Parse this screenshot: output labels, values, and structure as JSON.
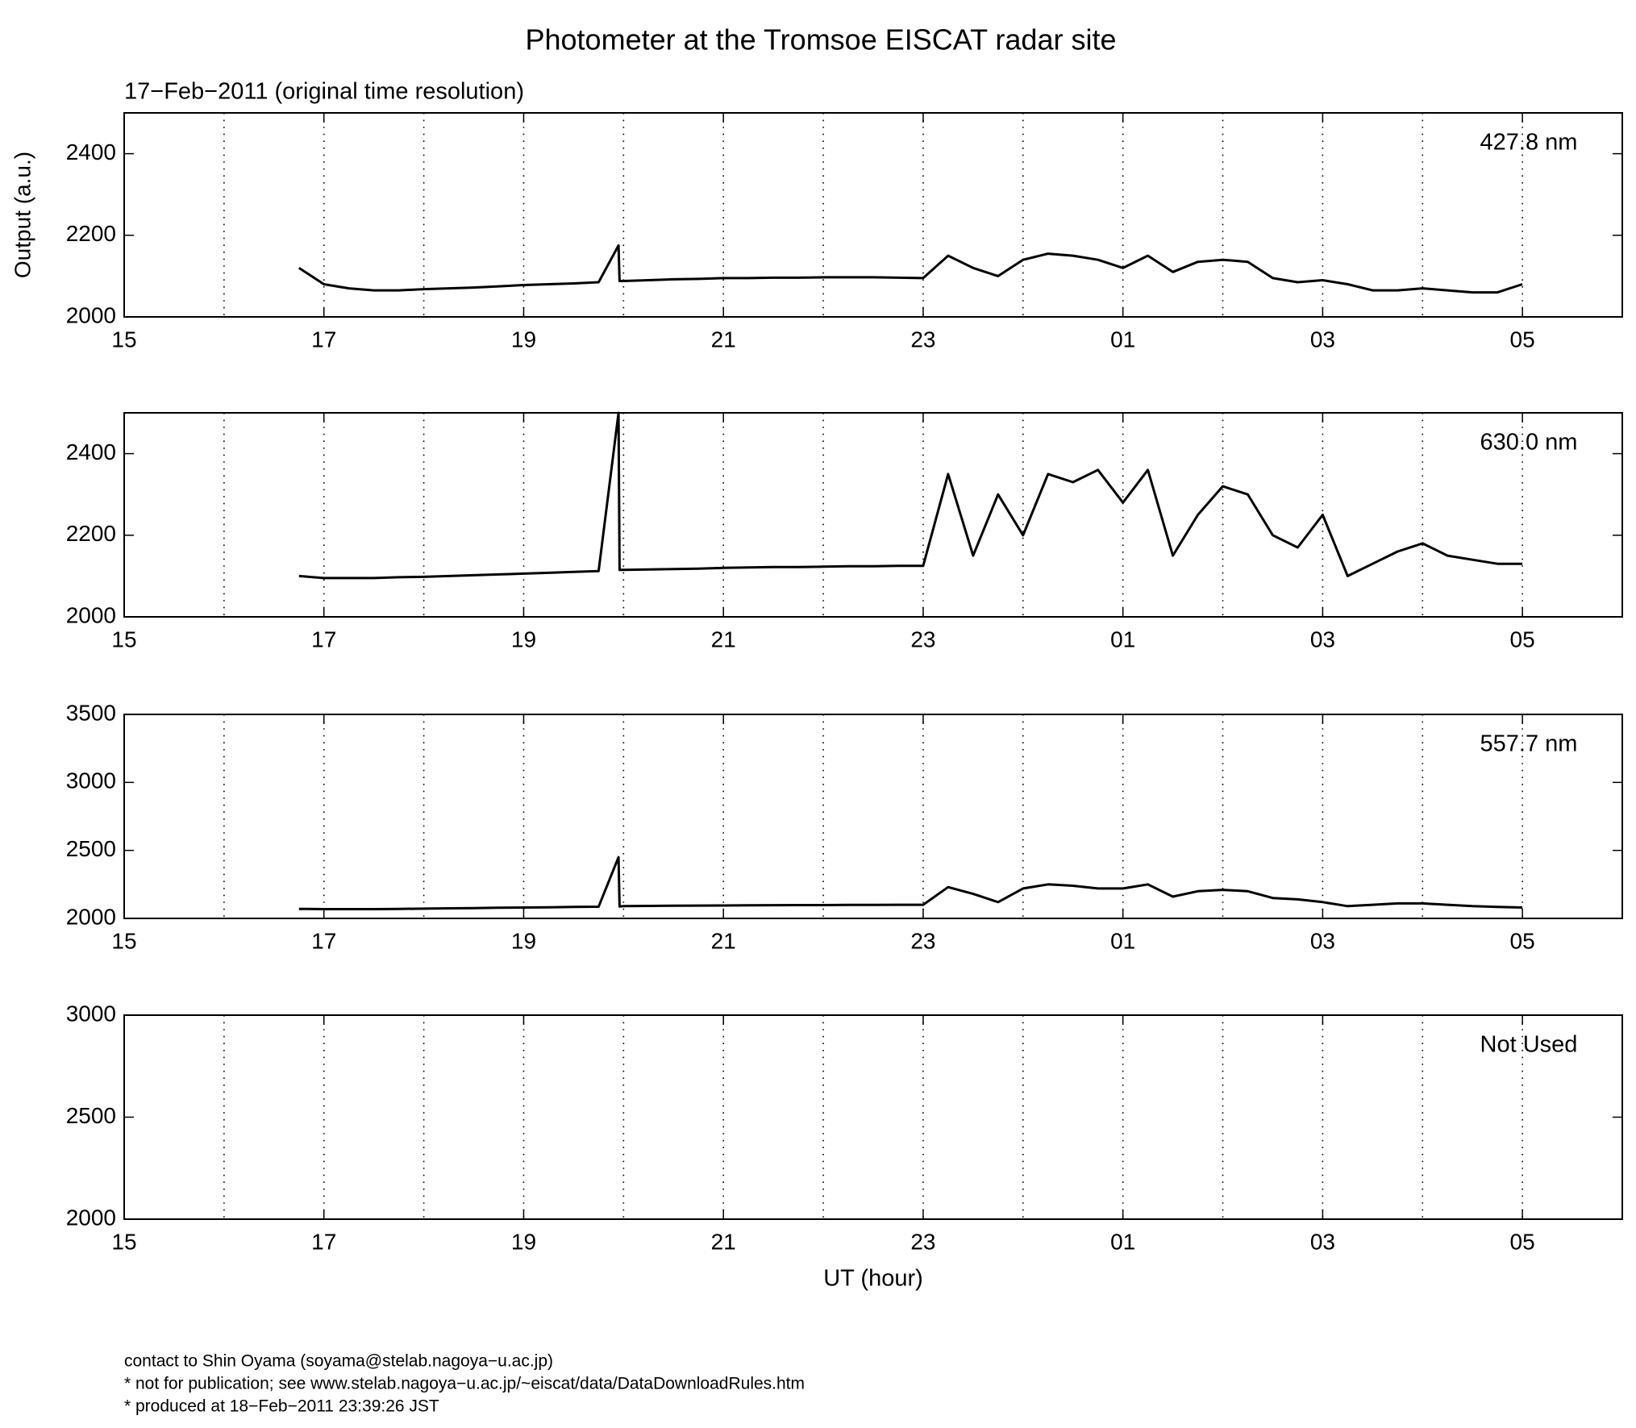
{
  "title": "Photometer at the Tromsoe EISCAT radar site",
  "subtitle": "17−Feb−2011 (original time resolution)",
  "footer": [
    "contact to Shin Oyama (soyama@stelab.nagoya−u.ac.jp)",
    "* not for publication; see www.stelab.nagoya−u.ac.jp/~eiscat/data/DataDownloadRules.htm",
    "* produced at 18−Feb−2011 23:39:26 JST"
  ],
  "chart_data": [
    {
      "type": "line",
      "annotation": "427.8 nm",
      "ylabel": "Output (a.u.)",
      "xlim": [
        15,
        30
      ],
      "xticks": [
        15,
        17,
        19,
        21,
        23,
        {
          "value": 25,
          "label": "01"
        },
        {
          "value": 27,
          "label": "03"
        },
        {
          "value": 29,
          "label": "05"
        }
      ],
      "xgrid": [
        16,
        17,
        18,
        19,
        20,
        21,
        22,
        23,
        24,
        25,
        26,
        27,
        28,
        29
      ],
      "ylim": [
        2000,
        2500
      ],
      "yticks": [
        2000,
        2200,
        2400
      ],
      "series": [
        {
          "color": "#000000",
          "x": [
            16.75,
            17,
            17.25,
            17.5,
            17.75,
            18,
            18.25,
            18.5,
            18.75,
            19,
            19.25,
            19.5,
            19.75,
            19.95,
            19.96,
            20,
            20.25,
            20.5,
            20.75,
            21,
            21.25,
            21.5,
            21.75,
            22,
            22.25,
            22.5,
            22.75,
            23,
            23.25,
            23.5,
            23.75,
            24,
            24.25,
            24.5,
            24.75,
            25,
            25.25,
            25.5,
            25.75,
            26,
            26.25,
            26.5,
            26.75,
            27,
            27.25,
            27.5,
            27.75,
            28,
            28.25,
            28.5,
            28.75,
            29
          ],
          "values": [
            2120,
            2080,
            2070,
            2065,
            2065,
            2068,
            2070,
            2072,
            2075,
            2078,
            2080,
            2082,
            2085,
            2175,
            2088,
            2088,
            2090,
            2092,
            2093,
            2095,
            2095,
            2096,
            2096,
            2097,
            2097,
            2097,
            2096,
            2095,
            2150,
            2120,
            2100,
            2140,
            2155,
            2150,
            2140,
            2120,
            2150,
            2110,
            2135,
            2140,
            2135,
            2095,
            2085,
            2090,
            2080,
            2065,
            2065,
            2070,
            2065,
            2060,
            2060,
            2080
          ]
        }
      ]
    },
    {
      "type": "line",
      "annotation": "630.0 nm",
      "xlim": [
        15,
        30
      ],
      "xticks": [
        15,
        17,
        19,
        21,
        23,
        {
          "value": 25,
          "label": "01"
        },
        {
          "value": 27,
          "label": "03"
        },
        {
          "value": 29,
          "label": "05"
        }
      ],
      "xgrid": [
        16,
        17,
        18,
        19,
        20,
        21,
        22,
        23,
        24,
        25,
        26,
        27,
        28,
        29
      ],
      "ylim": [
        2000,
        2500
      ],
      "yticks": [
        2000,
        2200,
        2400
      ],
      "series": [
        {
          "color": "#000000",
          "x": [
            16.75,
            17,
            17.25,
            17.5,
            17.75,
            18,
            18.25,
            18.5,
            18.75,
            19,
            19.25,
            19.5,
            19.75,
            19.95,
            19.96,
            20,
            20.25,
            20.5,
            20.75,
            21,
            21.25,
            21.5,
            21.75,
            22,
            22.25,
            22.5,
            22.75,
            23,
            23.25,
            23.5,
            23.75,
            24,
            24.25,
            24.5,
            24.75,
            25,
            25.25,
            25.5,
            25.75,
            26,
            26.25,
            26.5,
            26.75,
            27,
            27.25,
            27.5,
            27.75,
            28,
            28.25,
            28.5,
            28.75,
            29
          ],
          "values": [
            2100,
            2095,
            2095,
            2095,
            2097,
            2098,
            2100,
            2102,
            2104,
            2106,
            2108,
            2110,
            2112,
            2500,
            2115,
            2115,
            2116,
            2117,
            2118,
            2120,
            2121,
            2122,
            2122,
            2123,
            2124,
            2124,
            2125,
            2125,
            2350,
            2150,
            2300,
            2200,
            2350,
            2330,
            2360,
            2280,
            2360,
            2150,
            2250,
            2320,
            2300,
            2200,
            2170,
            2250,
            2100,
            2130,
            2160,
            2180,
            2150,
            2140,
            2130,
            2130
          ]
        }
      ]
    },
    {
      "type": "line",
      "annotation": "557.7 nm",
      "xlim": [
        15,
        30
      ],
      "xticks": [
        15,
        17,
        19,
        21,
        23,
        {
          "value": 25,
          "label": "01"
        },
        {
          "value": 27,
          "label": "03"
        },
        {
          "value": 29,
          "label": "05"
        }
      ],
      "xgrid": [
        16,
        17,
        18,
        19,
        20,
        21,
        22,
        23,
        24,
        25,
        26,
        27,
        28,
        29
      ],
      "ylim": [
        2000,
        3500
      ],
      "yticks": [
        2000,
        2500,
        3000,
        3500
      ],
      "series": [
        {
          "color": "#000000",
          "x": [
            16.75,
            17,
            17.25,
            17.5,
            17.75,
            18,
            18.25,
            18.5,
            18.75,
            19,
            19.25,
            19.5,
            19.75,
            19.95,
            19.96,
            20,
            20.25,
            20.5,
            20.75,
            21,
            21.25,
            21.5,
            21.75,
            22,
            22.25,
            22.5,
            22.75,
            23,
            23.25,
            23.5,
            23.75,
            24,
            24.25,
            24.5,
            24.75,
            25,
            25.25,
            25.5,
            25.75,
            26,
            26.25,
            26.5,
            26.75,
            27,
            27.25,
            27.5,
            27.75,
            28,
            28.25,
            28.5,
            28.75,
            29
          ],
          "values": [
            2070,
            2068,
            2068,
            2068,
            2070,
            2072,
            2074,
            2076,
            2078,
            2080,
            2082,
            2084,
            2086,
            2450,
            2088,
            2090,
            2092,
            2093,
            2094,
            2095,
            2096,
            2097,
            2098,
            2098,
            2099,
            2099,
            2100,
            2100,
            2230,
            2180,
            2120,
            2220,
            2250,
            2240,
            2220,
            2220,
            2250,
            2160,
            2200,
            2210,
            2200,
            2150,
            2140,
            2120,
            2090,
            2100,
            2110,
            2110,
            2100,
            2090,
            2085,
            2080
          ]
        }
      ]
    },
    {
      "type": "line",
      "annotation": "Not Used",
      "xlabel": "UT (hour)",
      "xlim": [
        15,
        30
      ],
      "xticks": [
        15,
        17,
        19,
        21,
        23,
        {
          "value": 25,
          "label": "01"
        },
        {
          "value": 27,
          "label": "03"
        },
        {
          "value": 29,
          "label": "05"
        }
      ],
      "xgrid": [
        16,
        17,
        18,
        19,
        20,
        21,
        22,
        23,
        24,
        25,
        26,
        27,
        28,
        29
      ],
      "ylim": [
        2000,
        3000
      ],
      "yticks": [
        2000,
        2500,
        3000
      ],
      "series": []
    }
  ]
}
